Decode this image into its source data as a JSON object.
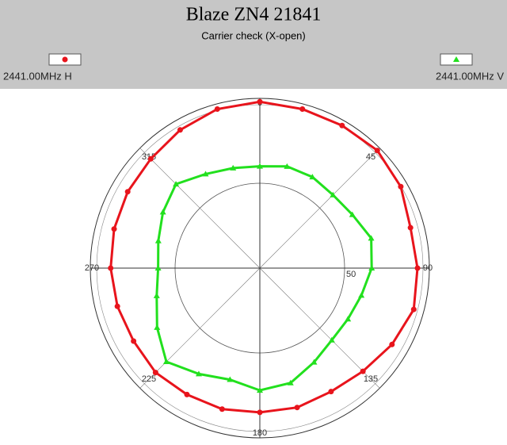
{
  "chart_data": {
    "type": "polar",
    "title": "Blaze ZN4 21841",
    "subtitle": "Carrier check (X-open)",
    "theta": [
      0,
      15,
      30,
      45,
      60,
      75,
      90,
      105,
      120,
      135,
      150,
      165,
      180,
      195,
      210,
      225,
      240,
      255,
      270,
      285,
      300,
      315,
      330,
      345
    ],
    "series": [
      {
        "name": "2441.00MHz H",
        "color": "#e8141c",
        "marker": "circle",
        "values": [
          98,
          97,
          97,
          98,
          96,
          92,
          93,
          94,
          90,
          86,
          84,
          85,
          85,
          86,
          86,
          87,
          86,
          87,
          88,
          89,
          90,
          91,
          94,
          97
        ]
      },
      {
        "name": "2441.00MHz V",
        "color": "#22e01e",
        "marker": "triangle",
        "values": [
          60,
          62,
          62,
          61,
          63,
          68,
          66,
          62,
          60,
          60,
          64,
          70,
          72,
          68,
          72,
          78,
          70,
          63,
          60,
          62,
          66,
          70,
          64,
          61
        ]
      }
    ],
    "rlim": [
      0,
      100
    ],
    "rticks": [
      50
    ],
    "thetaticks": [
      0,
      45,
      90,
      135,
      180,
      225,
      270,
      315
    ]
  }
}
